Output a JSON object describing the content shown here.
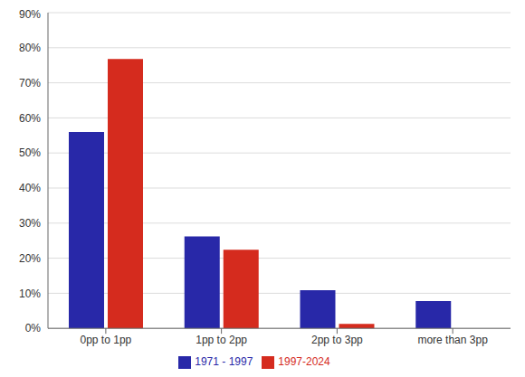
{
  "chart_data": {
    "type": "bar",
    "categories": [
      "0pp to 1pp",
      "1pp to 2pp",
      "2pp to 3pp",
      "more than 3pp"
    ],
    "series": [
      {
        "name": "1971 - 1997",
        "color": "#2828a8",
        "values": [
          56,
          26.2,
          10.9,
          7.8
        ]
      },
      {
        "name": "1997-2024",
        "color": "#d52b1e",
        "values": [
          76.8,
          22.4,
          1.3,
          0
        ]
      }
    ],
    "ylim": [
      0,
      90
    ],
    "yticks": [
      {
        "value": 0,
        "label": "0%"
      },
      {
        "value": 10,
        "label": "10%"
      },
      {
        "value": 20,
        "label": "20%"
      },
      {
        "value": 30,
        "label": "30%"
      },
      {
        "value": 40,
        "label": "40%"
      },
      {
        "value": 50,
        "label": "50%"
      },
      {
        "value": 60,
        "label": "60%"
      },
      {
        "value": 70,
        "label": "70%"
      },
      {
        "value": 80,
        "label": "80%"
      },
      {
        "value": 90,
        "label": "90%"
      }
    ],
    "grid": true,
    "legend": "bottom"
  }
}
